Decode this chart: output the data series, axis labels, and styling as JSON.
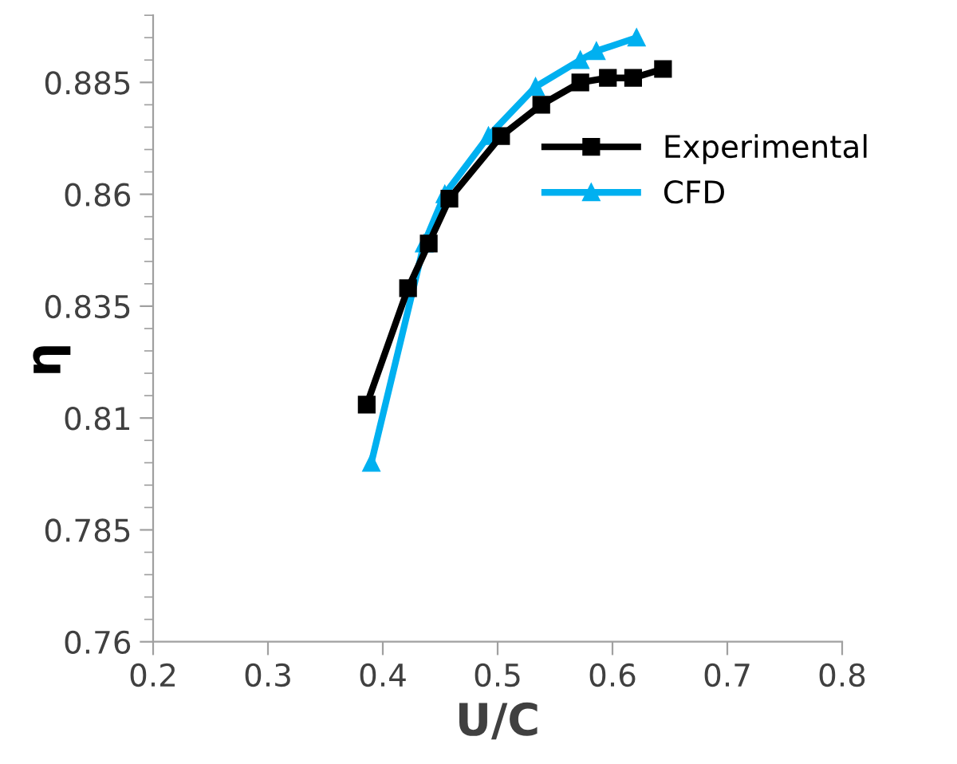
{
  "chart_data": {
    "type": "line",
    "xlabel": "U/C",
    "ylabel": "η",
    "xlim": [
      0.2,
      0.8
    ],
    "xticks": [
      0.2,
      0.3,
      0.4,
      0.5,
      0.6,
      0.7,
      0.8
    ],
    "ylim": [
      0.76,
      0.9
    ],
    "yticks": [
      0.76,
      0.785,
      0.81,
      0.835,
      0.86,
      0.885
    ],
    "grid": false,
    "legend": "right",
    "series": [
      {
        "name": "Experimental",
        "color": "#000000",
        "marker": "square",
        "x": [
          0.386,
          0.422,
          0.44,
          0.458,
          0.503,
          0.538,
          0.572,
          0.596,
          0.618,
          0.644
        ],
        "values": [
          0.813,
          0.839,
          0.849,
          0.859,
          0.873,
          0.88,
          0.885,
          0.886,
          0.886,
          0.888
        ]
      },
      {
        "name": "CFD",
        "color": "#00b0f0",
        "marker": "triangle",
        "x": [
          0.39,
          0.436,
          0.454,
          0.492,
          0.533,
          0.572,
          0.586,
          0.621
        ],
        "values": [
          0.8,
          0.849,
          0.86,
          0.873,
          0.884,
          0.89,
          0.892,
          0.895
        ]
      }
    ]
  }
}
